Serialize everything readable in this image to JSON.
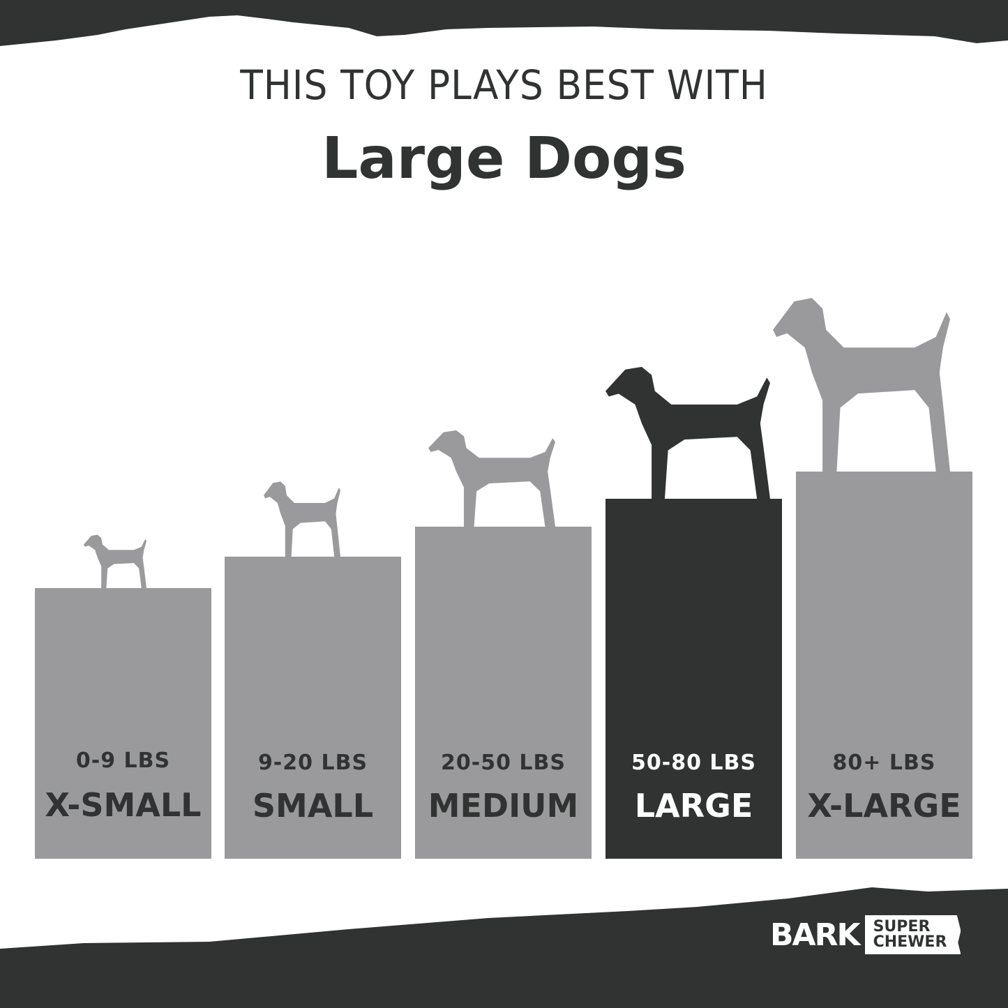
{
  "header": {
    "subtitle": "THIS TOY PLAYS BEST WITH",
    "title": "Large Dogs"
  },
  "colors": {
    "dark": "#303331",
    "gray": "#9a9a9c",
    "background": "#ffffff"
  },
  "sizes": [
    {
      "weight": "0-9 LBS",
      "label": "X-SMALL",
      "active": false,
      "dog": "chihuahua-icon"
    },
    {
      "weight": "9-20 LBS",
      "label": "SMALL",
      "active": false,
      "dog": "scottish-terrier-icon"
    },
    {
      "weight": "20-50 LBS",
      "label": "MEDIUM",
      "active": false,
      "dog": "labrador-icon"
    },
    {
      "weight": "50-80 LBS",
      "label": "LARGE",
      "active": true,
      "dog": "golden-retriever-icon"
    },
    {
      "weight": "80+ LBS",
      "label": "X-LARGE",
      "active": false,
      "dog": "great-dane-icon"
    }
  ],
  "logo": {
    "brand": "BARK",
    "line1": "SUPER",
    "line2": "CHEWER"
  }
}
